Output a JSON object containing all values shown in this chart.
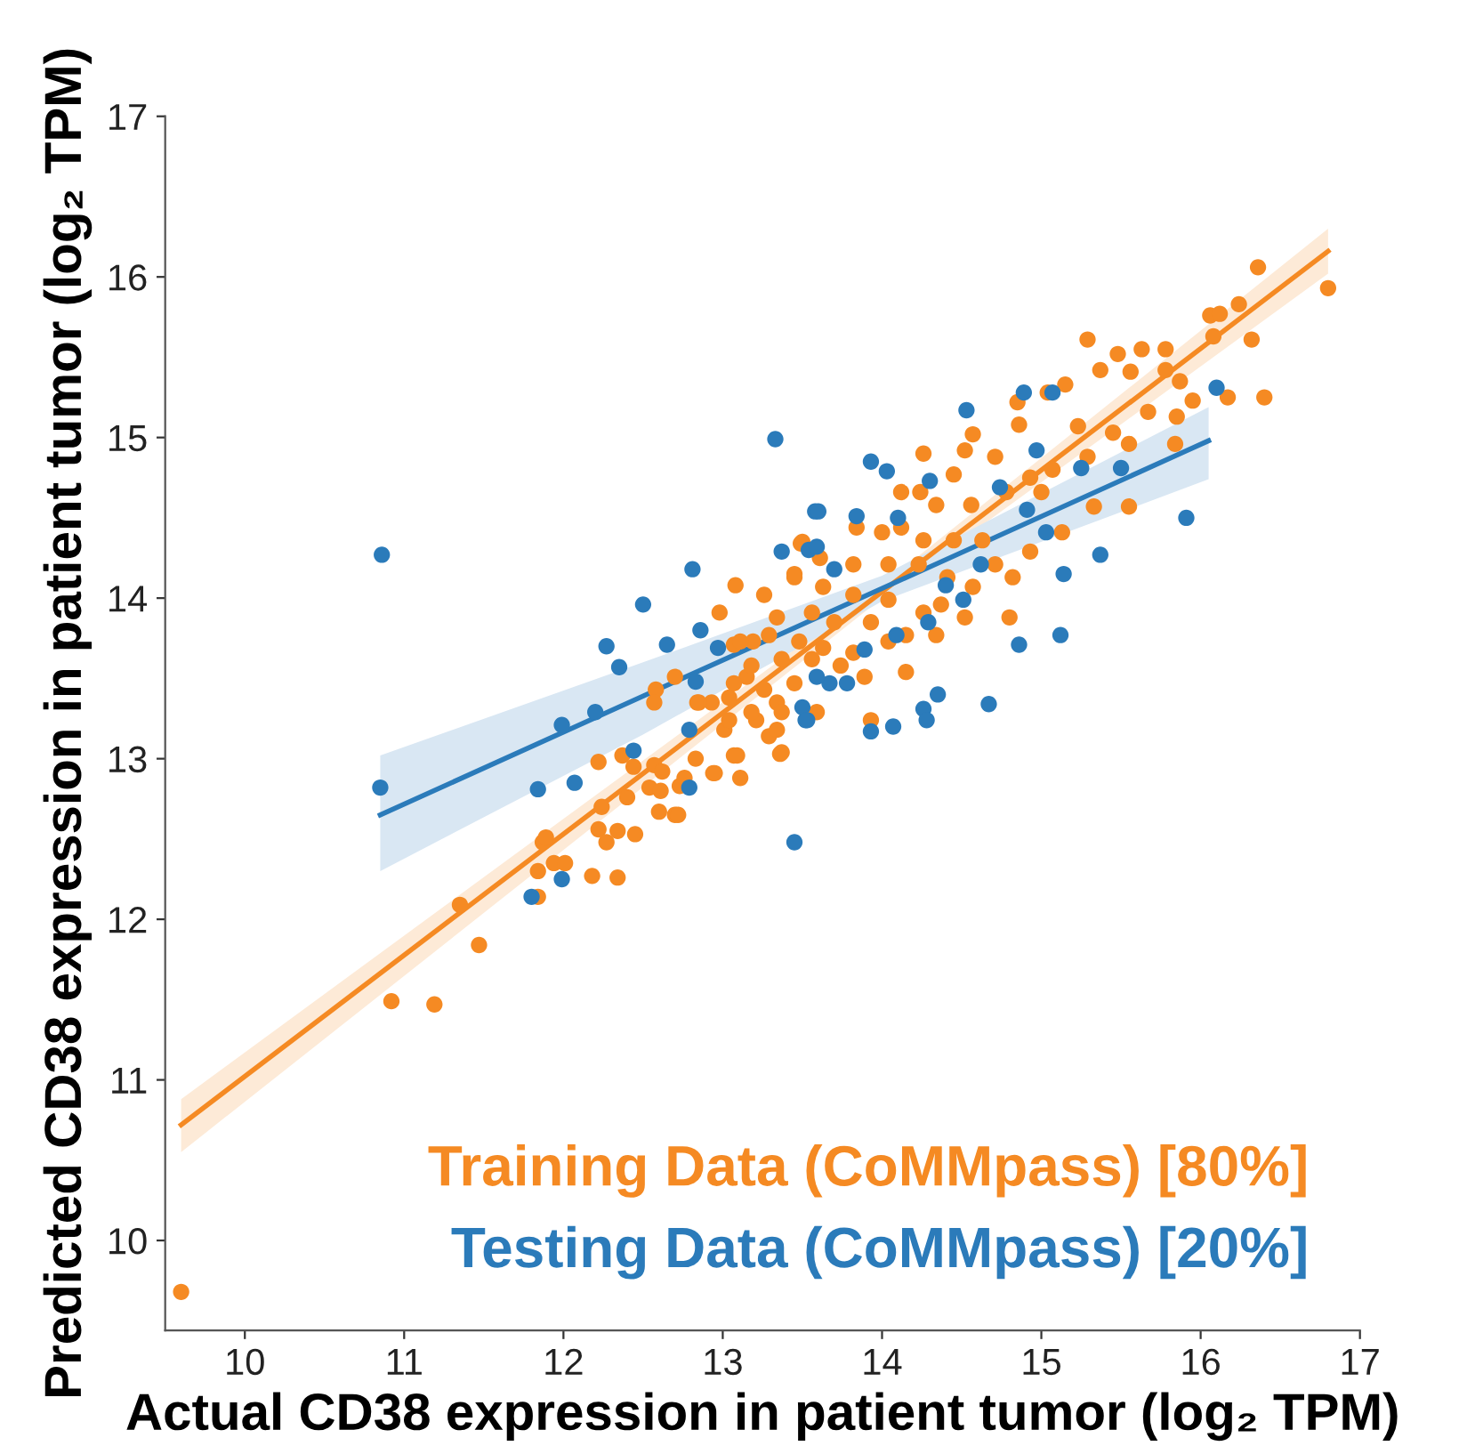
{
  "chart_data": {
    "type": "scatter",
    "xlabel": "Actual CD38 expression in patient tumor (log₂ TPM)",
    "ylabel": "Predicted CD38 expression in patient tumor (log₂ TPM)",
    "xlim": [
      9.5,
      17
    ],
    "ylim": [
      9.44,
      17
    ],
    "xticks": [
      10,
      11,
      12,
      13,
      14,
      15,
      16,
      17
    ],
    "yticks": [
      10,
      11,
      12,
      13,
      14,
      15,
      16,
      17
    ],
    "grid": false,
    "legend": "bottom right",
    "series": [
      {
        "name": "Training Data (CoMMpass) [80%]",
        "color": "#f58a23",
        "type": "scatter",
        "marker": "circle",
        "x": [
          9.6,
          10.92,
          11.19,
          11.47,
          11.35,
          11.84,
          11.84,
          11.94,
          12.01,
          12.18,
          12.34,
          11.87,
          11.89,
          12.22,
          12.27,
          12.34,
          12.45,
          12.24,
          12.4,
          12.6,
          12.7,
          12.54,
          12.61,
          12.73,
          12.76,
          12.94,
          13.11,
          12.22,
          12.37,
          12.44,
          12.57,
          12.62,
          12.83,
          13.07,
          13.36,
          13.08,
          13.26,
          12.98,
          13.49,
          13.45,
          12.7,
          12.58,
          12.57,
          12.84,
          13.07,
          13.19,
          13.04,
          13.01,
          13.09,
          13.21,
          13.34,
          13.29,
          13.15,
          16.8,
          16.36,
          16.24,
          16.06,
          16.12,
          16.32,
          16.4,
          16.17,
          16.08,
          15.29,
          15.78,
          15.63,
          15.48,
          15.37,
          15.56,
          15.78,
          15.87,
          15.95,
          15.85,
          15.84,
          15.55,
          15.67,
          15.55,
          15.33,
          15.15,
          15.04,
          14.85,
          14.86,
          15.23,
          15.45,
          15.29,
          15.07,
          14.93,
          14.71,
          14.57,
          14.52,
          14.26,
          14.45,
          14.24,
          14.12,
          14.34,
          14.56,
          14.78,
          15.0,
          15.13,
          14.93,
          14.82,
          14.63,
          14.45,
          14.26,
          14.12,
          14.0,
          13.84,
          13.5,
          13.61,
          13.82,
          14.04,
          14.23,
          14.41,
          14.57,
          14.71,
          14.8,
          14.52,
          14.26,
          14.04,
          13.82,
          13.63,
          13.45,
          13.34,
          13.56,
          13.7,
          13.93,
          14.15,
          14.34,
          14.37,
          14.04,
          13.82,
          13.63,
          13.48,
          13.29,
          13.11,
          13.18,
          13.37,
          13.56,
          13.74,
          13.89,
          14.15,
          13.93,
          13.07,
          13.26,
          13.45,
          13.59,
          13.37,
          13.18,
          13.04,
          12.93,
          12.85,
          13.34,
          13.37,
          12.95,
          12.72
        ],
        "values": [
          9.68,
          11.49,
          11.47,
          11.84,
          12.09,
          12.14,
          12.3,
          12.35,
          12.35,
          12.27,
          12.26,
          12.48,
          12.51,
          12.56,
          12.48,
          12.55,
          12.53,
          12.7,
          12.76,
          12.67,
          12.65,
          12.82,
          12.8,
          12.83,
          12.88,
          12.91,
          12.88,
          12.98,
          13.02,
          12.95,
          12.96,
          12.92,
          13.0,
          13.02,
          13.03,
          14.08,
          14.02,
          13.91,
          14.34,
          14.15,
          13.51,
          13.43,
          13.35,
          13.35,
          13.71,
          13.73,
          13.38,
          13.18,
          13.02,
          13.24,
          13.35,
          13.14,
          13.51,
          15.93,
          16.06,
          15.83,
          15.76,
          15.77,
          15.61,
          15.25,
          15.25,
          15.63,
          15.61,
          15.55,
          15.55,
          15.52,
          15.42,
          15.41,
          15.42,
          15.35,
          15.23,
          15.13,
          14.96,
          14.96,
          15.16,
          14.57,
          14.57,
          15.33,
          15.28,
          15.22,
          15.08,
          15.07,
          15.03,
          14.88,
          14.8,
          14.75,
          14.88,
          15.02,
          14.92,
          14.9,
          14.77,
          14.66,
          14.66,
          14.58,
          14.58,
          14.66,
          14.66,
          14.41,
          14.29,
          14.13,
          14.36,
          14.36,
          14.36,
          14.44,
          14.41,
          14.44,
          14.35,
          14.25,
          14.21,
          14.21,
          14.21,
          14.13,
          14.07,
          14.21,
          13.88,
          13.88,
          13.91,
          13.99,
          14.02,
          14.07,
          14.13,
          13.88,
          13.91,
          13.85,
          13.85,
          13.77,
          13.77,
          13.96,
          13.73,
          13.66,
          13.69,
          13.73,
          13.77,
          13.73,
          13.58,
          13.62,
          13.62,
          13.58,
          13.51,
          13.54,
          13.24,
          13.47,
          13.43,
          13.47,
          13.29,
          13.29,
          13.29,
          13.24,
          13.35,
          13.35,
          13.18,
          13.04,
          12.91,
          12.65
        ]
      },
      {
        "name": "Testing Data (CoMMpass) [20%]",
        "color": "#2b7bba",
        "type": "scatter",
        "marker": "circle",
        "x": [
          10.86,
          13.33,
          12.81,
          12.5,
          12.27,
          12.35,
          12.65,
          12.86,
          12.97,
          11.99,
          12.2,
          12.83,
          12.44,
          12.79,
          10.85,
          11.84,
          12.07,
          12.79,
          13.45,
          11.99,
          13.54,
          13.58,
          13.52,
          11.8,
          14.53,
          14.89,
          15.07,
          16.1,
          15.91,
          15.37,
          15.12,
          14.86,
          14.67,
          14.35,
          14.26,
          14.28,
          14.07,
          13.93,
          13.93,
          14.03,
          13.6,
          13.84,
          14.1,
          14.3,
          14.97,
          15.5,
          15.14,
          15.03,
          14.91,
          14.62,
          14.4,
          14.51,
          14.29,
          14.09,
          13.89,
          13.78,
          13.67,
          13.59,
          13.5,
          13.53,
          13.37,
          13.59,
          13.7,
          14.74,
          15.25
        ],
        "values": [
          14.27,
          14.99,
          14.18,
          13.96,
          13.7,
          13.57,
          13.71,
          13.8,
          13.69,
          13.21,
          13.29,
          13.48,
          13.05,
          13.18,
          12.82,
          12.81,
          12.85,
          12.82,
          12.48,
          12.25,
          14.3,
          14.54,
          13.24,
          12.14,
          15.17,
          15.28,
          15.28,
          15.31,
          14.5,
          14.27,
          13.77,
          13.71,
          13.34,
          13.4,
          13.31,
          13.24,
          13.2,
          13.17,
          14.85,
          14.79,
          14.54,
          14.51,
          14.5,
          14.73,
          14.92,
          14.81,
          14.15,
          14.41,
          14.55,
          14.21,
          14.08,
          13.99,
          13.85,
          13.77,
          13.68,
          13.47,
          13.47,
          13.51,
          13.32,
          13.24,
          14.29,
          14.32,
          14.18,
          14.69,
          14.81
        ]
      },
      {
        "color": "#f58a23",
        "type": "line",
        "marker": "none",
        "x": [
          9.6,
          14.0,
          16.8
        ],
        "values": [
          10.72,
          14.04,
          16.16
        ],
        "lower": [
          10.55,
          14.0,
          16.02
        ],
        "upper": [
          10.88,
          14.08,
          16.3
        ]
      },
      {
        "color": "#2b7bba",
        "type": "line",
        "marker": "none",
        "x": [
          10.85,
          12.5,
          14.0,
          16.05
        ],
        "values": [
          12.65,
          13.39,
          14.06,
          14.98
        ],
        "lower": [
          12.3,
          13.15,
          13.98,
          14.74
        ],
        "upper": [
          13.02,
          13.6,
          14.14,
          15.19
        ]
      }
    ]
  }
}
